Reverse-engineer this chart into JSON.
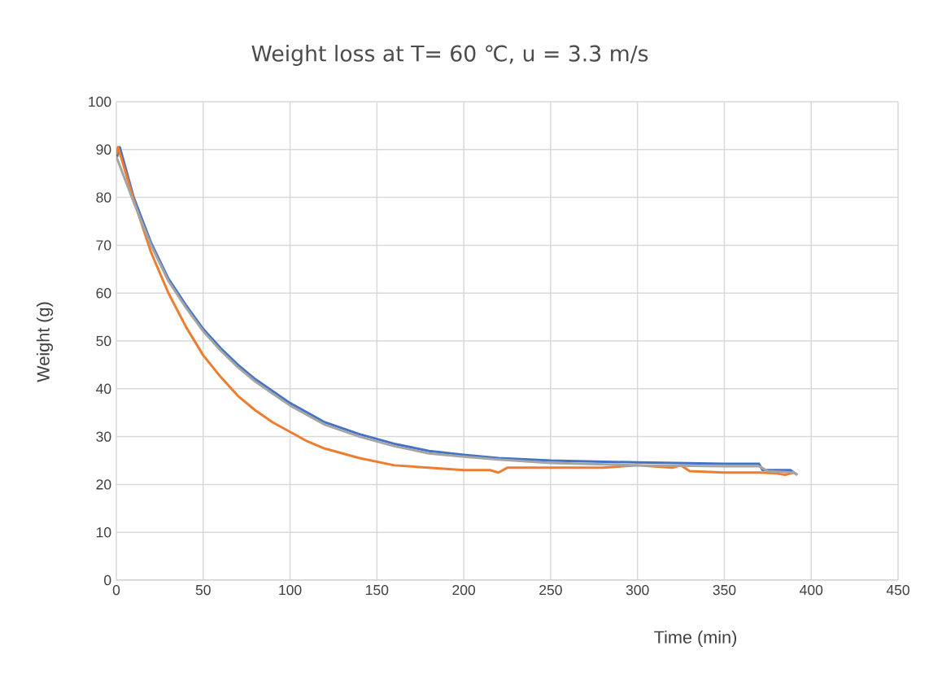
{
  "chart_data": {
    "type": "line",
    "title": "Weight loss at T= 60 ℃, u = 3.3 m/s",
    "xlabel": "Time (min)",
    "ylabel": "Weight (g)",
    "xlim": [
      0,
      450
    ],
    "ylim": [
      0,
      100
    ],
    "xticks": [
      0,
      50,
      100,
      150,
      200,
      250,
      300,
      350,
      400,
      450
    ],
    "yticks": [
      0,
      10,
      20,
      30,
      40,
      50,
      60,
      70,
      80,
      90,
      100
    ],
    "grid": true,
    "marker": "none",
    "line_style": "solid",
    "series": [
      {
        "color": "#4472c4",
        "x": [
          0,
          2,
          10,
          20,
          30,
          40,
          50,
          60,
          70,
          80,
          90,
          100,
          120,
          140,
          160,
          180,
          200,
          220,
          250,
          300,
          350,
          370,
          372,
          388,
          392
        ],
        "values": [
          88,
          90.5,
          80,
          70.5,
          63,
          57.5,
          52.5,
          48.5,
          45,
          42,
          39.5,
          37,
          33,
          30.5,
          28.5,
          27,
          26.2,
          25.5,
          25,
          24.6,
          24.3,
          24.3,
          23,
          23,
          22
        ]
      },
      {
        "color": "#ed7d31",
        "x": [
          0,
          1,
          10,
          20,
          30,
          40,
          50,
          60,
          70,
          80,
          90,
          100,
          110,
          120,
          140,
          160,
          180,
          200,
          215,
          220,
          225,
          250,
          280,
          300,
          320,
          325,
          330,
          350,
          370,
          380,
          385,
          390
        ],
        "values": [
          89,
          90.5,
          79.5,
          68.5,
          60,
          53,
          47,
          42.5,
          38.5,
          35.5,
          33,
          31,
          29,
          27.5,
          25.5,
          24,
          23.5,
          23,
          23,
          22.5,
          23.5,
          23.5,
          23.5,
          24,
          23.5,
          24,
          22.8,
          22.5,
          22.5,
          22.3,
          22,
          22.5
        ]
      },
      {
        "color": "#a5a5a5",
        "x": [
          0,
          10,
          20,
          30,
          40,
          50,
          60,
          70,
          80,
          90,
          100,
          120,
          140,
          160,
          180,
          200,
          220,
          250,
          300,
          350,
          370,
          375,
          390,
          392
        ],
        "values": [
          88.5,
          79,
          70,
          62.5,
          57,
          52,
          48,
          44.5,
          41.5,
          39,
          36.5,
          32.5,
          30,
          28,
          26.5,
          25.8,
          25.2,
          24.5,
          24,
          23.8,
          23.8,
          22.8,
          22.5,
          22
        ]
      }
    ]
  }
}
